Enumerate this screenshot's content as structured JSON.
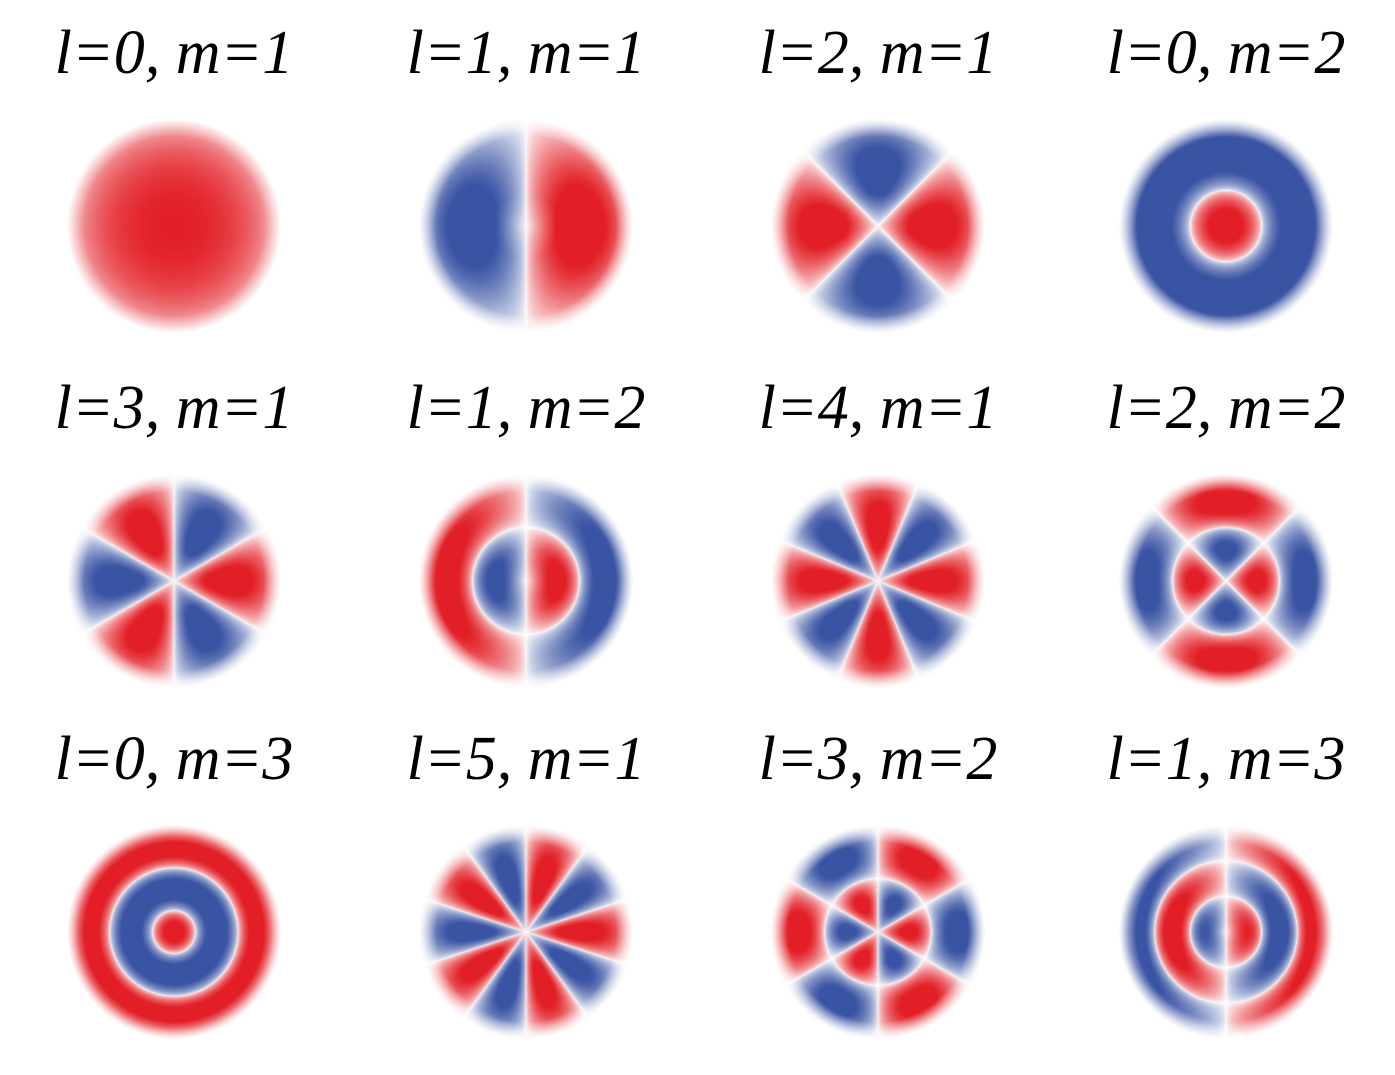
{
  "colors": {
    "positive": "#e21f26",
    "negative": "#3a54a4",
    "background": "#ffffff",
    "text": "#000000"
  },
  "modes": [
    {
      "label": "l=0, m=1",
      "l": 0,
      "m": 1
    },
    {
      "label": "l=1, m=1",
      "l": 1,
      "m": 1
    },
    {
      "label": "l=2, m=1",
      "l": 2,
      "m": 1
    },
    {
      "label": "l=0, m=2",
      "l": 0,
      "m": 2
    },
    {
      "label": "l=3, m=1",
      "l": 3,
      "m": 1
    },
    {
      "label": "l=1, m=2",
      "l": 1,
      "m": 2
    },
    {
      "label": "l=4, m=1",
      "l": 4,
      "m": 1
    },
    {
      "label": "l=2, m=2",
      "l": 2,
      "m": 2
    },
    {
      "label": "l=0, m=3",
      "l": 0,
      "m": 3
    },
    {
      "label": "l=5, m=1",
      "l": 5,
      "m": 1
    },
    {
      "label": "l=3, m=2",
      "l": 3,
      "m": 2
    },
    {
      "label": "l=1, m=3",
      "l": 1,
      "m": 3
    }
  ]
}
